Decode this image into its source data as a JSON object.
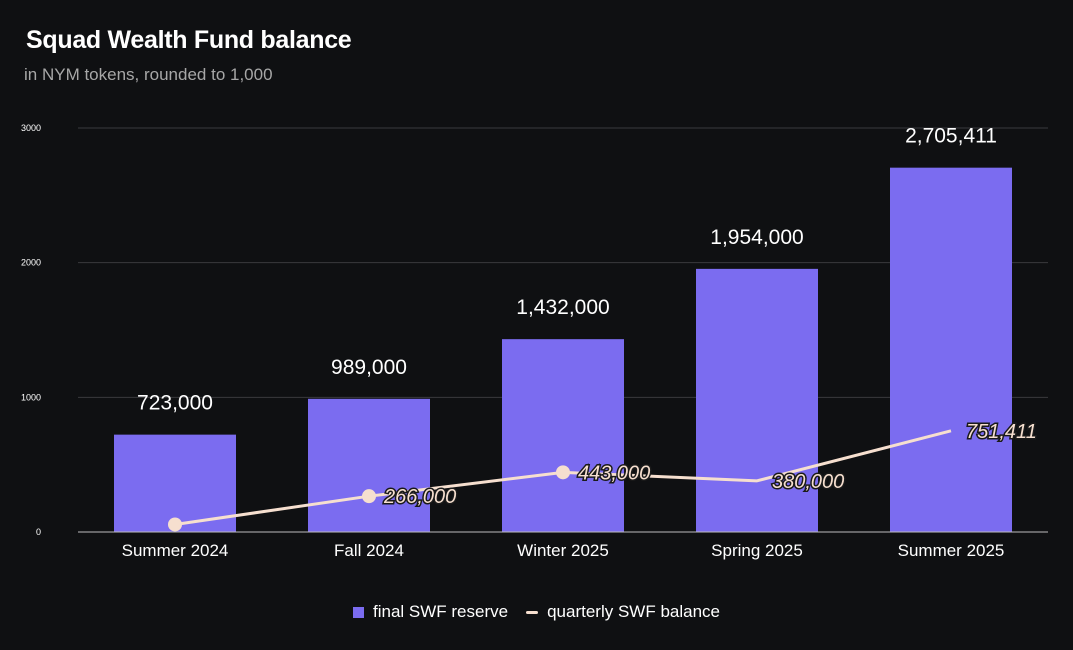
{
  "header": {
    "title": "Squad Wealth Fund balance",
    "subtitle": "in NYM tokens, rounded to 1,000"
  },
  "colors": {
    "background": "#0f1012",
    "bar": "#7b6cf0",
    "line": "#f6dfcf",
    "grid": "#3a3a3d",
    "axis": "#bdbdbd"
  },
  "chart_data": {
    "type": "bar",
    "title": "Squad Wealth Fund balance",
    "subtitle": "in NYM tokens, rounded to 1,000",
    "categories": [
      "Summer 2024",
      "Fall 2024",
      "Winter 2025",
      "Spring 2025",
      "Summer 2025"
    ],
    "ylim": [
      0,
      3000
    ],
    "yticks": [
      0,
      1000,
      2000,
      3000
    ],
    "ytick_labels": [
      "0",
      "1000",
      "2000",
      "3000"
    ],
    "grid": true,
    "legend_position": "bottom",
    "series": [
      {
        "name": "final SWF reserve",
        "type": "bar",
        "values": [
          723,
          989,
          1432,
          1954,
          2705.411
        ],
        "labels": [
          "723,000",
          "989,000",
          "1,432,000",
          "1,954,000",
          "2,705,411"
        ]
      },
      {
        "name": "quarterly SWF balance",
        "type": "line",
        "values": [
          56,
          266,
          443,
          380,
          751.411
        ],
        "labels": [
          "",
          "266,000",
          "443,000",
          "380,000",
          "751,411"
        ]
      }
    ]
  }
}
